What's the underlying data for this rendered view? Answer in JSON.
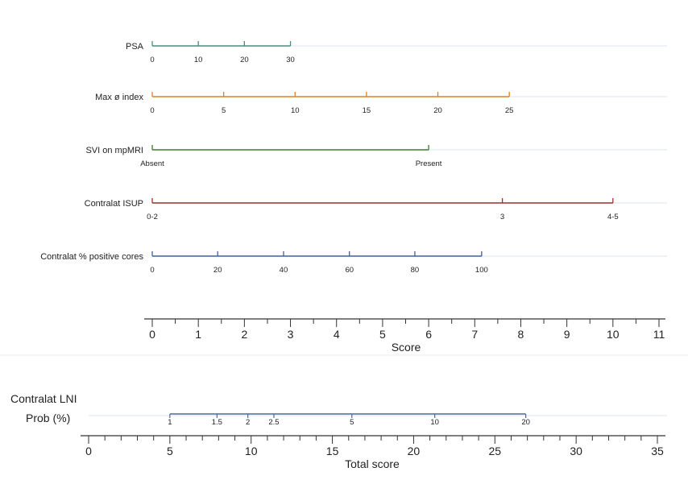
{
  "chart_data": {
    "type": "nomogram",
    "colors": {
      "PSA": "#4c8c80",
      "Max ø index": "#e0801e",
      "SVI on mpMRI": "#3f7a2f",
      "Contralat ISUP": "#9e2f2f",
      "Contralat % positive cores": "#3f5fa0",
      "Contralat LNI": "#4a6a9a",
      "axis": "#333333",
      "guide": "#dde6ee"
    },
    "predictors": [
      {
        "name": "PSA",
        "label": "PSA",
        "ticks": [
          {
            "label": "0",
            "points": 0
          },
          {
            "label": "10",
            "points": 1
          },
          {
            "label": "20",
            "points": 2
          },
          {
            "label": "30",
            "points": 3
          }
        ]
      },
      {
        "name": "Max ø index",
        "label": "Max ø index",
        "ticks": [
          {
            "label": "0",
            "points": 0
          },
          {
            "label": "5",
            "points": 1.55
          },
          {
            "label": "10",
            "points": 3.1
          },
          {
            "label": "15",
            "points": 4.65
          },
          {
            "label": "20",
            "points": 6.2
          },
          {
            "label": "25",
            "points": 7.75
          }
        ]
      },
      {
        "name": "SVI on mpMRI",
        "label": "SVI on mpMRI",
        "ticks": [
          {
            "label": "Absent",
            "points": 0
          },
          {
            "label": "Present",
            "points": 6
          }
        ]
      },
      {
        "name": "Contralat ISUP",
        "label": "Contralat ISUP",
        "ticks": [
          {
            "label": "0-2",
            "points": 0
          },
          {
            "label": "3",
            "points": 7.6
          },
          {
            "label": "4-5",
            "points": 10
          }
        ]
      },
      {
        "name": "Contralat % positive cores",
        "label": "Contralat % positive cores",
        "ticks": [
          {
            "label": "0",
            "points": 0
          },
          {
            "label": "20",
            "points": 1.42
          },
          {
            "label": "40",
            "points": 2.85
          },
          {
            "label": "60",
            "points": 4.28
          },
          {
            "label": "80",
            "points": 5.7
          },
          {
            "label": "100",
            "points": 7.15
          }
        ]
      }
    ],
    "score_axis": {
      "title": "Score",
      "min": 0,
      "max": 11,
      "major_ticks": [
        "0",
        "1",
        "2",
        "3",
        "4",
        "5",
        "6",
        "7",
        "8",
        "9",
        "10",
        "11"
      ],
      "minor_step": 0.5
    },
    "probability": {
      "label_line1": "Contralat LNI",
      "label_line2": "Prob (%)",
      "ticks": [
        {
          "label": "1",
          "total_score": 5
        },
        {
          "label": "1.5",
          "total_score": 7.9
        },
        {
          "label": "2",
          "total_score": 9.8
        },
        {
          "label": "2.5",
          "total_score": 11.4
        },
        {
          "label": "5",
          "total_score": 16.2
        },
        {
          "label": "10",
          "total_score": 21.3
        },
        {
          "label": "20",
          "total_score": 26.9
        }
      ]
    },
    "total_axis": {
      "title": "Total score",
      "min": 0,
      "max": 35,
      "major_ticks": [
        "0",
        "5",
        "10",
        "15",
        "20",
        "25",
        "30",
        "35"
      ],
      "minor_step": 1
    }
  }
}
